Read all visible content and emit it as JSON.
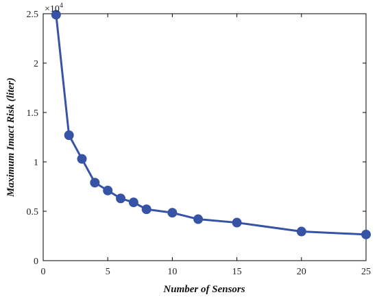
{
  "chart_data": {
    "type": "line",
    "title": "",
    "xlabel": "Number of Sensors",
    "ylabel": "Maximum Imact Risk (liter)",
    "y_multiplier_label": "×10",
    "y_multiplier_exponent": "4",
    "xlim": [
      0,
      25
    ],
    "ylim": [
      0,
      2.5
    ],
    "xticks": [
      0,
      5,
      10,
      15,
      20,
      25
    ],
    "yticks": [
      0,
      0.5,
      1,
      1.5,
      2,
      2.5
    ],
    "ytick_labels": [
      "0",
      "0.5",
      "1",
      "1.5",
      "2",
      "2.5"
    ],
    "grid": false,
    "series": [
      {
        "color": "#3653a5",
        "marker": "circle",
        "x": [
          1,
          2,
          3,
          4,
          5,
          6,
          7,
          8,
          10,
          12,
          15,
          20,
          25
        ],
        "y": [
          2.49,
          1.27,
          1.03,
          0.79,
          0.71,
          0.63,
          0.59,
          0.52,
          0.485,
          0.42,
          0.385,
          0.295,
          0.265
        ]
      }
    ]
  }
}
